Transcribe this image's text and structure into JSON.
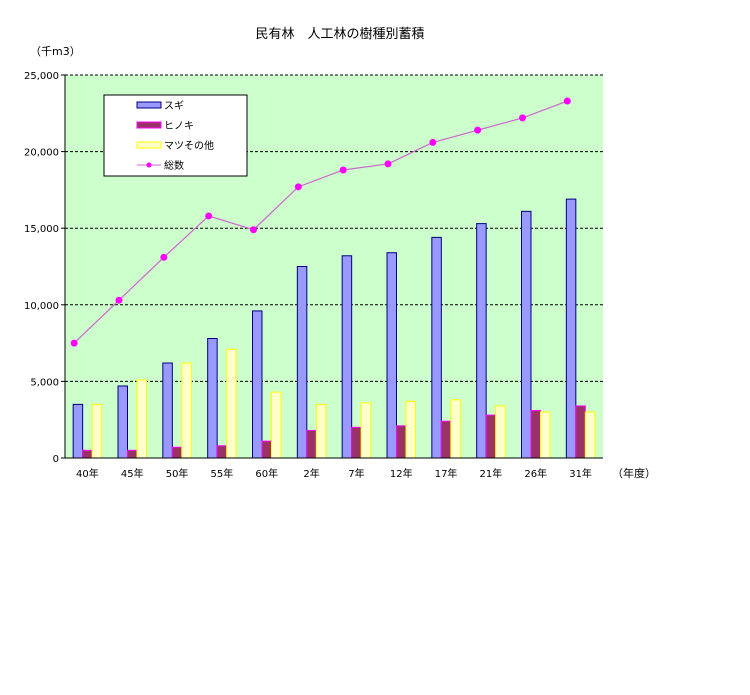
{
  "chart_data": {
    "type": "bar",
    "title": "民有林　人工林の樹種別蓄積",
    "ylabel": "（千m3）",
    "xlabel": "（年度）",
    "ylim": [
      0,
      25000
    ],
    "yticks": [
      "0",
      "5,000",
      "10,000",
      "15,000",
      "20,000",
      "25,000"
    ],
    "grid": true,
    "legend_position": "top-left",
    "categories": [
      "40年",
      "45年",
      "50年",
      "55年",
      "60年",
      "2年",
      "7年",
      "12年",
      "17年",
      "21年",
      "26年",
      "31年"
    ],
    "series": [
      {
        "name": "スギ",
        "type": "bar",
        "color": "#9999FF",
        "values": [
          3500,
          4700,
          6200,
          7800,
          9600,
          12500,
          13200,
          13400,
          14400,
          15300,
          16100,
          16900
        ]
      },
      {
        "name": "ヒノキ",
        "type": "bar",
        "color": "#993366",
        "values": [
          500,
          500,
          700,
          800,
          1100,
          1800,
          2000,
          2100,
          2400,
          2800,
          3100,
          3400
        ]
      },
      {
        "name": "マツその他",
        "type": "bar",
        "color": "#FFFFCC",
        "values": [
          3500,
          5100,
          6200,
          7100,
          4300,
          3500,
          3600,
          3700,
          3800,
          3400,
          3000,
          3000
        ]
      },
      {
        "name": "総数",
        "type": "line",
        "color": "#FF00FF",
        "values": [
          7500,
          10300,
          13100,
          15800,
          14900,
          17700,
          18800,
          19200,
          20600,
          21400,
          22200,
          23300
        ]
      }
    ]
  }
}
